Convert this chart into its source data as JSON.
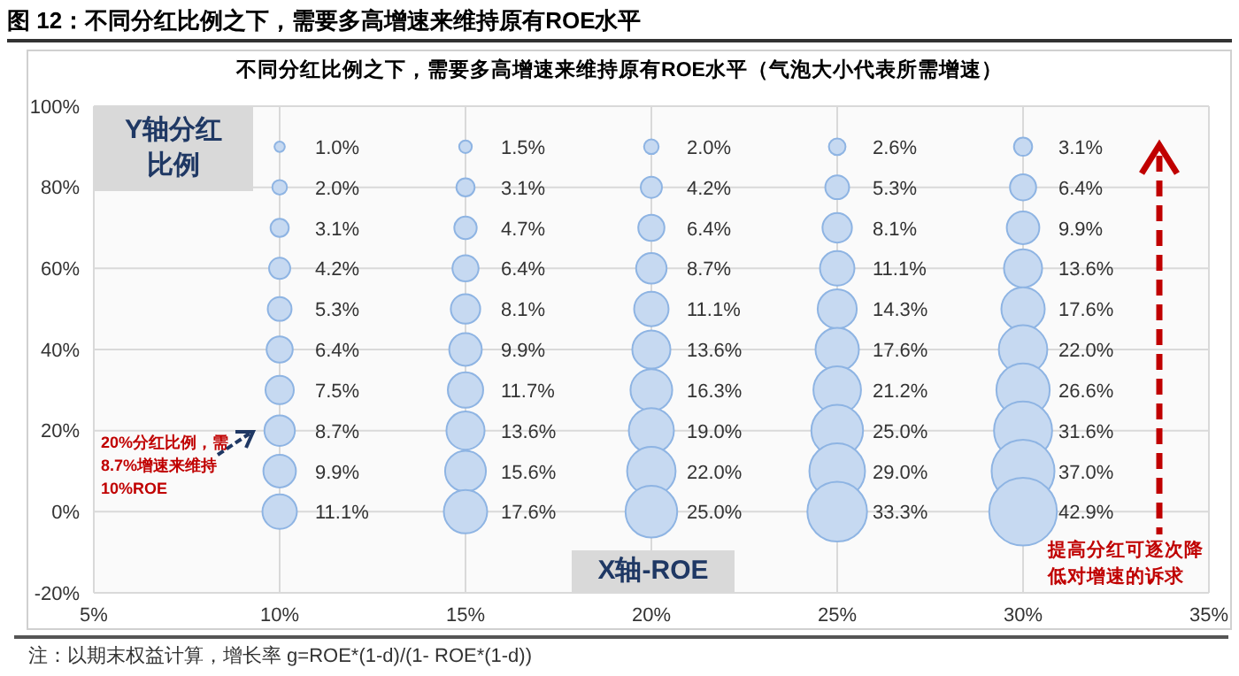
{
  "chart_data": {
    "type": "bubble",
    "title": "图 12：不同分红比例之下，需要多高增速来维持原有ROE水平",
    "subtitle": "不同分红比例之下，需要多高增速来维持原有ROE水平（气泡大小代表所需增速）",
    "xlabel": "X轴-ROE",
    "ylabel": "Y轴分红比例",
    "xlim": [
      5,
      35
    ],
    "xticks": [
      {
        "value": 5,
        "label": "5%"
      },
      {
        "value": 10,
        "label": "10%"
      },
      {
        "value": 15,
        "label": "15%"
      },
      {
        "value": 20,
        "label": "20%"
      },
      {
        "value": 25,
        "label": "25%"
      },
      {
        "value": 30,
        "label": "30%"
      },
      {
        "value": 35,
        "label": "35%"
      }
    ],
    "ylim": [
      -20,
      100
    ],
    "yticks": [
      {
        "value": -20,
        "label": "-20%"
      },
      {
        "value": 0,
        "label": "0%"
      },
      {
        "value": 20,
        "label": "20%"
      },
      {
        "value": 40,
        "label": "40%"
      },
      {
        "value": 60,
        "label": "60%"
      },
      {
        "value": 80,
        "label": "80%"
      },
      {
        "value": 100,
        "label": "100%"
      }
    ],
    "grid": true,
    "series": [
      {
        "color": "#c6d9f1",
        "x": [
          10,
          10,
          10,
          10,
          10,
          10,
          10,
          10,
          10,
          10
        ],
        "values": [
          90,
          80,
          70,
          60,
          50,
          40,
          30,
          20,
          10,
          0
        ],
        "sizes": [
          1.0,
          2.0,
          3.1,
          4.2,
          5.3,
          6.4,
          7.5,
          8.7,
          9.9,
          11.1
        ],
        "value_labels": [
          "1.0%",
          "2.0%",
          "3.1%",
          "4.2%",
          "5.3%",
          "6.4%",
          "7.5%",
          "8.7%",
          "9.9%",
          "11.1%"
        ]
      },
      {
        "color": "#c6d9f1",
        "x": [
          15,
          15,
          15,
          15,
          15,
          15,
          15,
          15,
          15,
          15
        ],
        "values": [
          90,
          80,
          70,
          60,
          50,
          40,
          30,
          20,
          10,
          0
        ],
        "sizes": [
          1.5,
          3.1,
          4.7,
          6.4,
          8.1,
          9.9,
          11.7,
          13.6,
          15.6,
          17.6
        ],
        "value_labels": [
          "1.5%",
          "3.1%",
          "4.7%",
          "6.4%",
          "8.1%",
          "9.9%",
          "11.7%",
          "13.6%",
          "15.6%",
          "17.6%"
        ]
      },
      {
        "color": "#c6d9f1",
        "x": [
          20,
          20,
          20,
          20,
          20,
          20,
          20,
          20,
          20,
          20
        ],
        "values": [
          90,
          80,
          70,
          60,
          50,
          40,
          30,
          20,
          10,
          0
        ],
        "sizes": [
          2.0,
          4.2,
          6.4,
          8.7,
          11.1,
          13.6,
          16.3,
          19.0,
          22.0,
          25.0
        ],
        "value_labels": [
          "2.0%",
          "4.2%",
          "6.4%",
          "8.7%",
          "11.1%",
          "13.6%",
          "16.3%",
          "19.0%",
          "22.0%",
          "25.0%"
        ]
      },
      {
        "color": "#c6d9f1",
        "x": [
          25,
          25,
          25,
          25,
          25,
          25,
          25,
          25,
          25,
          25
        ],
        "values": [
          90,
          80,
          70,
          60,
          50,
          40,
          30,
          20,
          10,
          0
        ],
        "sizes": [
          2.6,
          5.3,
          8.1,
          11.1,
          14.3,
          17.6,
          21.2,
          25.0,
          29.0,
          33.3
        ],
        "value_labels": [
          "2.6%",
          "5.3%",
          "8.1%",
          "11.1%",
          "14.3%",
          "17.6%",
          "21.2%",
          "25.0%",
          "29.0%",
          "33.3%"
        ]
      },
      {
        "color": "#c6d9f1",
        "x": [
          30,
          30,
          30,
          30,
          30,
          30,
          30,
          30,
          30,
          30
        ],
        "values": [
          90,
          80,
          70,
          60,
          50,
          40,
          30,
          20,
          10,
          0
        ],
        "sizes": [
          3.1,
          6.4,
          9.9,
          13.6,
          17.6,
          22.0,
          26.6,
          31.6,
          37.0,
          42.9
        ],
        "value_labels": [
          "3.1%",
          "6.4%",
          "9.9%",
          "13.6%",
          "17.6%",
          "22.0%",
          "26.6%",
          "31.6%",
          "37.0%",
          "42.9%"
        ]
      }
    ],
    "annotations": [
      "20%分红比例，需8.7%增速来维持10%ROE",
      "提高分红可逐次降低对增速的诉求",
      "注：以期末权益计算，增长率 g=ROE*(1-d)/(1- ROE*(1-d))"
    ]
  }
}
